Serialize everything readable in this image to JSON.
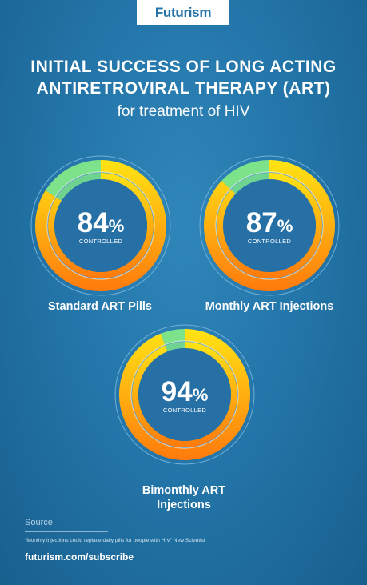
{
  "brand": {
    "logo": "Futurism"
  },
  "header": {
    "title_line1": "INITIAL SUCCESS OF LONG ACTING",
    "title_line2": "ANTIRETROVIRAL THERAPY (ART)",
    "subtitle": "for treatment of HIV"
  },
  "colors": {
    "controlled_gradient": [
      "#ffe414",
      "#ff7a0c"
    ],
    "uncontrolled": "#7de38b",
    "center": "#2670a6",
    "ring_outline": "#6fb0d8"
  },
  "chart_data": [
    {
      "type": "pie",
      "value_percent": 84,
      "value_text": "84",
      "unit": "%",
      "caption": "CONTROLLED",
      "label_lines": [
        "Standard ART Pills"
      ]
    },
    {
      "type": "pie",
      "value_percent": 87,
      "value_text": "87",
      "unit": "%",
      "caption": "CONTROLLED",
      "label_lines": [
        "Monthly ART Injections"
      ]
    },
    {
      "type": "pie",
      "value_percent": 94,
      "value_text": "94",
      "unit": "%",
      "caption": "CONTROLLED",
      "label_lines": [
        "Bimonthly ART",
        "Injections"
      ]
    }
  ],
  "source": {
    "heading": "Source",
    "citation": "“Monthly injections could replace daily pills for people with HIV” New Scientist"
  },
  "footer": {
    "url": "futurism.com/subscribe"
  }
}
